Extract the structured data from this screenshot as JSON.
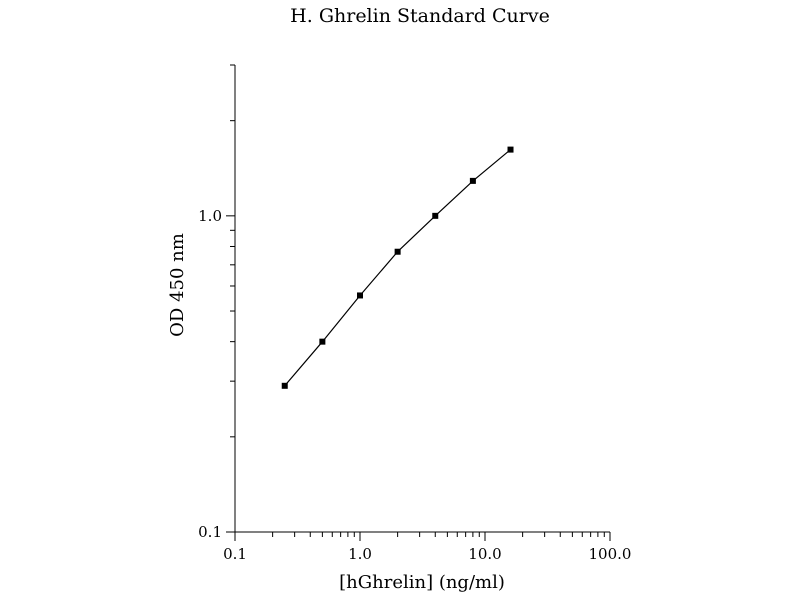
{
  "chart_data": {
    "type": "line",
    "title": "H. Ghrelin Standard Curve",
    "xlabel": "[hGhrelin] (ng/ml)",
    "ylabel": "OD 450 nm",
    "xscale": "log",
    "yscale": "log",
    "xlim": [
      0.1,
      100.0
    ],
    "ylim": [
      0.1,
      3.0
    ],
    "xticks": [
      0.1,
      1.0,
      10.0,
      100.0
    ],
    "xtick_labels": [
      "0.1",
      "1.0",
      "10.0",
      "100.0"
    ],
    "yticks": [
      0.1,
      1.0
    ],
    "ytick_labels": [
      "0.1",
      "1.0"
    ],
    "grid": false,
    "series": [
      {
        "x": [
          0.25,
          0.5,
          1.0,
          2.0,
          4.0,
          8.0,
          16.0
        ],
        "y": [
          0.29,
          0.4,
          0.56,
          0.77,
          1.0,
          1.29,
          1.62
        ]
      }
    ],
    "colors": {
      "line": "#000000",
      "marker": "#000000",
      "axis": "#000000"
    }
  }
}
